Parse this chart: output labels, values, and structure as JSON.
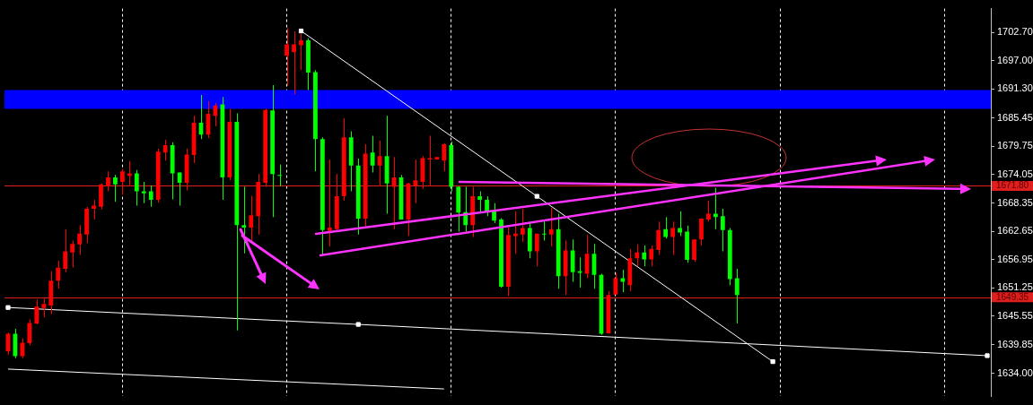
{
  "chart_data": {
    "type": "candlestick",
    "categories": [
      null,
      null,
      null,
      null,
      null,
      null,
      null,
      null,
      null,
      null,
      null,
      null,
      null,
      null,
      null,
      null,
      null,
      null,
      null,
      null,
      null,
      null,
      null,
      null,
      null,
      null,
      null,
      null,
      null,
      null,
      null,
      null,
      null,
      null,
      null,
      null,
      null,
      null,
      null,
      null,
      null,
      null,
      null,
      null,
      null,
      null,
      null,
      null,
      null,
      null,
      null,
      null,
      null,
      null,
      null,
      null,
      null,
      null,
      null,
      null,
      null,
      null,
      null,
      null,
      null,
      null,
      null,
      null,
      null,
      null,
      null,
      null,
      null,
      null,
      null,
      null,
      null,
      null,
      null,
      null,
      null,
      null,
      null,
      null,
      null,
      null,
      null,
      null,
      null,
      null,
      null,
      null,
      null,
      null,
      null,
      null,
      null,
      null,
      null,
      null,
      null,
      null,
      null,
      null,
      null,
      null,
      null,
      null,
      null,
      null,
      null,
      null,
      null,
      null,
      null,
      null,
      null,
      null,
      null,
      null,
      null,
      null,
      null,
      null,
      null,
      null,
      null,
      null,
      null,
      null,
      null,
      null,
      null,
      null,
      null,
      null,
      null,
      null
    ],
    "ohlc": [
      [
        1638.5,
        1642.3,
        1637.8,
        1642.0
      ],
      [
        1642.0,
        1643.0,
        1637.1,
        1637.5
      ],
      [
        1637.5,
        1641.1,
        1637.1,
        1640.2
      ],
      [
        1640.1,
        1644.9,
        1639.7,
        1644.2
      ],
      [
        1644.1,
        1648.9,
        1643.9,
        1647.5
      ],
      [
        1647.2,
        1649.1,
        1645.3,
        1648.0
      ],
      [
        1647.7,
        1654.6,
        1646.0,
        1652.7
      ],
      [
        1652.7,
        1656.7,
        1651.1,
        1655.3
      ],
      [
        1655.1,
        1663.1,
        1654.4,
        1658.6
      ],
      [
        1658.4,
        1660.8,
        1655.3,
        1660.1
      ],
      [
        1660.0,
        1663.9,
        1657.9,
        1662.2
      ],
      [
        1662.0,
        1667.6,
        1660.3,
        1667.2
      ],
      [
        1667.2,
        1669.0,
        1665.0,
        1667.8
      ],
      [
        1667.6,
        1672.3,
        1667.1,
        1672.1
      ],
      [
        1671.7,
        1674.7,
        1670.7,
        1673.5
      ],
      [
        1673.5,
        1674.0,
        1668.6,
        1672.1
      ],
      [
        1672.6,
        1675.2,
        1670.0,
        1674.7
      ],
      [
        1673.8,
        1676.8,
        1671.7,
        1674.3
      ],
      [
        1674.3,
        1675.0,
        1667.8,
        1670.7
      ],
      [
        1670.7,
        1672.6,
        1668.3,
        1670.3
      ],
      [
        1670.7,
        1671.9,
        1667.6,
        1669.0
      ],
      [
        1669.0,
        1679.3,
        1668.4,
        1678.7
      ],
      [
        1678.5,
        1681.1,
        1676.9,
        1680.0
      ],
      [
        1680.0,
        1680.6,
        1669.1,
        1674.3
      ],
      [
        1674.5,
        1674.5,
        1667.8,
        1672.4
      ],
      [
        1672.4,
        1679.3,
        1670.9,
        1678.1
      ],
      [
        1678.0,
        1685.9,
        1676.4,
        1684.5
      ],
      [
        1684.5,
        1690.1,
        1681.2,
        1682.1
      ],
      [
        1682.1,
        1688.9,
        1681.4,
        1686.3
      ],
      [
        1685.9,
        1688.5,
        1683.8,
        1688.0
      ],
      [
        1688.2,
        1689.7,
        1669.0,
        1673.5
      ],
      [
        1673.5,
        1687.3,
        1672.9,
        1684.7
      ],
      [
        1684.7,
        1686.4,
        1642.7,
        1663.9
      ],
      [
        1663.9,
        1671.6,
        1658.2,
        1663.4
      ],
      [
        1663.4,
        1669.8,
        1660.5,
        1665.9
      ],
      [
        1665.7,
        1674.2,
        1662.0,
        1672.6
      ],
      [
        1672.4,
        1687.3,
        1671.6,
        1687.1
      ],
      [
        1687.0,
        1692.1,
        1665.5,
        1674.2
      ],
      [
        1674.0,
        1676.1,
        1671.7,
        1673.8
      ],
      [
        1698.0,
        1703.6,
        1692.0,
        1700.3
      ],
      [
        1698.7,
        1702.9,
        1690.2,
        1700.3
      ],
      [
        1700.1,
        1702.4,
        1695.1,
        1701.1
      ],
      [
        1701.1,
        1701.5,
        1691.1,
        1694.6
      ],
      [
        1694.7,
        1695.1,
        1674.7,
        1681.2
      ],
      [
        1681.2,
        1681.6,
        1657.7,
        1662.9
      ],
      [
        1662.7,
        1677.1,
        1659.6,
        1663.4
      ],
      [
        1663.1,
        1674.2,
        1662.9,
        1669.7
      ],
      [
        1669.7,
        1685.4,
        1668.8,
        1681.6
      ],
      [
        1681.6,
        1682.8,
        1670.7,
        1675.9
      ],
      [
        1675.9,
        1677.3,
        1662.0,
        1665.2
      ],
      [
        1665.2,
        1680.2,
        1663.4,
        1678.3
      ],
      [
        1678.5,
        1681.9,
        1674.5,
        1675.9
      ],
      [
        1675.9,
        1680.9,
        1671.7,
        1677.8
      ],
      [
        1677.8,
        1685.9,
        1666.2,
        1672.3
      ],
      [
        1671.6,
        1677.6,
        1663.1,
        1673.5
      ],
      [
        1673.5,
        1674.0,
        1665.0,
        1665.0
      ],
      [
        1665.0,
        1672.4,
        1661.7,
        1672.3
      ],
      [
        1671.9,
        1677.1,
        1668.3,
        1672.9
      ],
      [
        1672.6,
        1677.8,
        1671.2,
        1677.4
      ],
      [
        1677.1,
        1681.9,
        1671.7,
        1677.4
      ],
      [
        1677.1,
        1677.6,
        1677.1,
        1677.6
      ],
      [
        1676.9,
        1680.4,
        1674.7,
        1680.2
      ],
      [
        1680.0,
        1680.7,
        1670.7,
        1671.6
      ],
      [
        1671.6,
        1671.7,
        1662.6,
        1666.4
      ],
      [
        1666.5,
        1671.6,
        1662.6,
        1663.9
      ],
      [
        1663.9,
        1671.6,
        1661.5,
        1669.7
      ],
      [
        1669.7,
        1670.7,
        1666.5,
        1669.0
      ],
      [
        1669.0,
        1669.7,
        1665.7,
        1666.7
      ],
      [
        1666.7,
        1668.3,
        1664.3,
        1664.8
      ],
      [
        1665.0,
        1665.3,
        1651.3,
        1651.5
      ],
      [
        1651.5,
        1663.4,
        1649.6,
        1661.9
      ],
      [
        1661.7,
        1666.7,
        1658.1,
        1662.2
      ],
      [
        1662.0,
        1667.2,
        1660.5,
        1663.3
      ],
      [
        1663.3,
        1664.5,
        1657.2,
        1658.6
      ],
      [
        1658.6,
        1662.2,
        1655.6,
        1662.2
      ],
      [
        1662.2,
        1664.8,
        1660.8,
        1662.0
      ],
      [
        1662.0,
        1667.4,
        1659.6,
        1663.1
      ],
      [
        1663.1,
        1666.2,
        1651.1,
        1653.6
      ],
      [
        1653.6,
        1660.8,
        1649.8,
        1658.8
      ],
      [
        1658.8,
        1661.0,
        1652.5,
        1654.4
      ],
      [
        1654.6,
        1657.4,
        1651.3,
        1654.3
      ],
      [
        1654.1,
        1661.9,
        1653.2,
        1658.1
      ],
      [
        1658.1,
        1660.1,
        1651.1,
        1653.9
      ],
      [
        1653.9,
        1654.1,
        1641.8,
        1642.0
      ],
      [
        1642.1,
        1650.6,
        1642.0,
        1649.8
      ],
      [
        1649.9,
        1654.3,
        1649.9,
        1653.2
      ],
      [
        1653.2,
        1654.9,
        1650.4,
        1652.5
      ],
      [
        1651.8,
        1659.1,
        1650.6,
        1657.2
      ],
      [
        1657.2,
        1660.0,
        1655.6,
        1658.4
      ],
      [
        1658.4,
        1659.8,
        1655.6,
        1657.0
      ],
      [
        1657.0,
        1659.8,
        1655.6,
        1659.1
      ],
      [
        1658.9,
        1664.6,
        1657.9,
        1662.9
      ],
      [
        1663.1,
        1665.5,
        1661.2,
        1661.5
      ],
      [
        1661.5,
        1664.6,
        1657.9,
        1663.3
      ],
      [
        1663.3,
        1666.7,
        1661.7,
        1662.4
      ],
      [
        1662.6,
        1663.8,
        1656.3,
        1656.9
      ],
      [
        1656.9,
        1661.0,
        1656.5,
        1661.0
      ],
      [
        1661.0,
        1665.3,
        1659.8,
        1665.2
      ],
      [
        1665.0,
        1668.8,
        1664.6,
        1666.2
      ],
      [
        1666.2,
        1671.4,
        1663.1,
        1665.5
      ],
      [
        1665.7,
        1667.2,
        1658.6,
        1662.9
      ],
      [
        1662.9,
        1663.3,
        1651.8,
        1653.0
      ],
      [
        1653.2,
        1655.1,
        1644.1,
        1649.8
      ],
      null,
      null,
      null,
      null,
      null,
      null,
      null,
      null,
      null,
      null,
      null,
      null,
      null,
      null,
      null,
      null,
      null,
      null,
      null,
      null,
      null,
      null,
      null,
      null,
      null,
      null,
      null,
      null,
      null,
      null,
      null,
      null,
      null,
      null,
      null
    ],
    "colors": [
      "#ff0000",
      "#00ff00",
      "#ff0000",
      "#ff0000",
      "#ff0000",
      "#ff0000",
      "#ff0000",
      "#ff0000",
      "#ff0000",
      "#ff0000",
      "#ff0000",
      "#ff0000",
      "#ff0000",
      "#ff0000",
      "#ff0000",
      "#00ff00",
      "#ff0000",
      "#ff0000",
      "#00ff00",
      "#00ff00",
      "#00ff00",
      "#ff0000",
      "#ff0000",
      "#00ff00",
      "#00ff00",
      "#ff0000",
      "#ff0000",
      "#00ff00",
      "#ff0000",
      "#ff0000",
      "#00ff00",
      "#ff0000",
      "#00ff00",
      "#00ff00",
      "#ff0000",
      "#ff0000",
      "#ff0000",
      "#00ff00",
      "#00ff00",
      "#ff0000",
      "#ff0000",
      "#ff0000",
      "#00ff00",
      "#00ff00",
      "#00ff00",
      "#ff0000",
      "#ff0000",
      "#ff0000",
      "#00ff00",
      "#00ff00",
      "#ff0000",
      "#00ff00",
      "#ff0000",
      "#00ff00",
      "#ff0000",
      "#00ff00",
      "#ff0000",
      "#ff0000",
      "#ff0000",
      "#ff0000",
      "#ff0000",
      "#ff0000",
      "#00ff00",
      "#00ff00",
      "#00ff00",
      "#ff0000",
      "#00ff00",
      "#00ff00",
      "#00ff00",
      "#00ff00",
      "#ff0000",
      "#ff0000",
      "#ff0000",
      "#00ff00",
      "#ff0000",
      "#00ff00",
      "#ff0000",
      "#00ff00",
      "#ff0000",
      "#00ff00",
      "#00ff00",
      "#ff0000",
      "#00ff00",
      "#00ff00",
      "#ff0000",
      "#ff0000",
      "#00ff00",
      "#ff0000",
      "#ff0000",
      "#00ff00",
      "#ff0000",
      "#ff0000",
      "#00ff00",
      "#ff0000",
      "#00ff00",
      "#00ff00",
      "#ff0000",
      "#ff0000",
      "#ff0000",
      "#00ff00",
      "#00ff00",
      "#00ff00",
      "#00ff00",
      null,
      null,
      null,
      null,
      null,
      null,
      null,
      null,
      null,
      null,
      null,
      null,
      null,
      null,
      null,
      null,
      null,
      null,
      null,
      null,
      null,
      null,
      null,
      null,
      null,
      null,
      null,
      null,
      null,
      null,
      null,
      null,
      null,
      null,
      null
    ],
    "series": [
      {
        "type": "line",
        "color": "#ffffff",
        "marker": "square",
        "values": [
          null,
          null,
          null,
          null,
          null,
          null,
          null,
          null,
          null,
          null,
          null,
          null,
          null,
          null,
          null,
          null,
          null,
          null,
          null,
          null,
          null,
          null,
          null,
          null,
          null,
          null,
          null,
          null,
          null,
          null,
          null,
          null,
          null,
          null,
          null,
          null,
          null,
          null,
          null,
          null,
          null,
          1703.0,
          null,
          null,
          null,
          null,
          null,
          null,
          null,
          null,
          null,
          null,
          null,
          null,
          null,
          null,
          null,
          null,
          null,
          null,
          null,
          null,
          null,
          null,
          null,
          null,
          null,
          null,
          null,
          null,
          null,
          null,
          null,
          null,
          1669.7,
          null,
          null,
          null,
          null,
          null,
          null,
          null,
          null,
          null,
          null,
          null,
          null,
          null,
          null,
          null,
          null,
          null,
          null,
          null,
          null,
          null,
          null,
          null,
          null,
          null,
          null,
          null,
          null,
          null,
          null,
          null,
          null,
          1636.4,
          null,
          null,
          null,
          null,
          null,
          null,
          null,
          null,
          null,
          null,
          null,
          null,
          null,
          null,
          null,
          null,
          null,
          null,
          null,
          null,
          null,
          null,
          null,
          null,
          null,
          null,
          null,
          null,
          null,
          null
        ]
      },
      {
        "type": "line",
        "color": "#ffffff",
        "marker": "square",
        "values": [
          1647.3,
          null,
          null,
          null,
          null,
          null,
          null,
          null,
          null,
          null,
          null,
          null,
          null,
          null,
          null,
          null,
          null,
          null,
          null,
          null,
          null,
          null,
          null,
          null,
          null,
          null,
          null,
          null,
          null,
          null,
          null,
          null,
          null,
          null,
          null,
          null,
          null,
          null,
          null,
          null,
          null,
          null,
          null,
          null,
          null,
          null,
          null,
          null,
          null,
          1643.9,
          null,
          null,
          null,
          null,
          null,
          null,
          null,
          null,
          null,
          null,
          null,
          null,
          null,
          null,
          null,
          null,
          null,
          null,
          null,
          null,
          null,
          null,
          null,
          null,
          null,
          null,
          null,
          null,
          null,
          null,
          null,
          null,
          null,
          null,
          null,
          null,
          null,
          null,
          null,
          null,
          null,
          null,
          null,
          null,
          null,
          null,
          null,
          null,
          null,
          null,
          null,
          null,
          null,
          null,
          null,
          null,
          null,
          null,
          null,
          null,
          null,
          null,
          null,
          null,
          null,
          null,
          null,
          null,
          null,
          null,
          null,
          null,
          null,
          null,
          null,
          null,
          null,
          null,
          null,
          null,
          null,
          null,
          null,
          null,
          null,
          null,
          null,
          1637.6
        ]
      },
      {
        "type": "line",
        "color": "#ffffff",
        "marker": "none",
        "values": [
          1634.9,
          null,
          null,
          null,
          null,
          null,
          null,
          null,
          null,
          null,
          null,
          null,
          null,
          null,
          null,
          null,
          null,
          null,
          null,
          null,
          null,
          null,
          null,
          null,
          null,
          null,
          null,
          null,
          null,
          null,
          null,
          null,
          null,
          null,
          null,
          null,
          null,
          null,
          null,
          null,
          null,
          null,
          null,
          null,
          null,
          null,
          null,
          null,
          null,
          null,
          null,
          null,
          null,
          null,
          null,
          null,
          null,
          null,
          null,
          null,
          null,
          1630.9,
          null,
          null,
          null,
          null,
          null,
          null,
          null,
          null,
          null,
          null,
          null,
          null,
          null,
          null,
          null,
          null,
          null,
          null,
          null,
          null,
          null,
          null,
          null,
          null,
          null,
          null,
          null,
          null,
          null,
          null,
          null,
          null,
          null,
          null,
          null,
          null,
          null,
          null,
          null,
          null,
          null,
          null,
          null,
          null,
          null,
          null,
          null,
          null,
          null,
          null,
          null,
          null,
          null,
          null,
          null,
          null,
          null,
          null,
          null,
          null,
          null,
          null,
          null,
          null,
          null,
          null,
          null,
          null,
          null,
          null,
          null,
          null,
          null,
          null,
          null,
          null
        ]
      }
    ],
    "ylim": [
      1629.4,
      1707.5
    ],
    "yticks": [
      {
        "value": 1702.7,
        "label": "1702.70"
      },
      {
        "value": 1697,
        "label": "1697.00"
      },
      {
        "value": 1691.3,
        "label": "1691.30"
      },
      1685.45,
      1679.75,
      1674.05,
      1668.35,
      1662.65,
      1656.95,
      1651.25,
      1645.55,
      1639.85,
      {
        "value": 1634,
        "label": "1634.00"
      }
    ],
    "ref_lines": [
      {
        "axis": "y",
        "value": 1671.8,
        "label": "1671.80",
        "color": "#e01e1e"
      },
      {
        "axis": "y",
        "value": 1649.35,
        "label": "1649.35",
        "color": "#e01e1e"
      }
    ],
    "bands": [
      {
        "axis": "y",
        "from": 1687.3,
        "to": 1691.1,
        "color": "#0000ff"
      }
    ],
    "grid": "x",
    "tick_labels": "y",
    "legend": false
  }
}
